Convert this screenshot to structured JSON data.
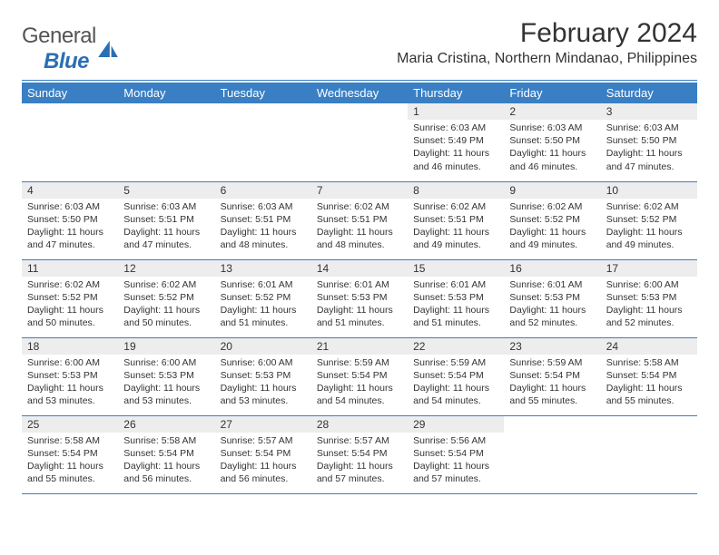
{
  "brand": {
    "name_general": "General",
    "name_blue": "Blue"
  },
  "title": "February 2024",
  "location": "Maria Cristina, Northern Mindanao, Philippines",
  "colors": {
    "header_bg": "#3a7fc4",
    "header_text": "#ffffff",
    "daynum_bg": "#ededed",
    "rule": "#3a7fc4",
    "text": "#333333",
    "brand_blue": "#2a6fb5"
  },
  "day_headers": [
    "Sunday",
    "Monday",
    "Tuesday",
    "Wednesday",
    "Thursday",
    "Friday",
    "Saturday"
  ],
  "weeks": [
    [
      null,
      null,
      null,
      null,
      {
        "n": "1",
        "sr": "6:03 AM",
        "ss": "5:49 PM",
        "dh": "11",
        "dm": "46"
      },
      {
        "n": "2",
        "sr": "6:03 AM",
        "ss": "5:50 PM",
        "dh": "11",
        "dm": "46"
      },
      {
        "n": "3",
        "sr": "6:03 AM",
        "ss": "5:50 PM",
        "dh": "11",
        "dm": "47"
      }
    ],
    [
      {
        "n": "4",
        "sr": "6:03 AM",
        "ss": "5:50 PM",
        "dh": "11",
        "dm": "47"
      },
      {
        "n": "5",
        "sr": "6:03 AM",
        "ss": "5:51 PM",
        "dh": "11",
        "dm": "47"
      },
      {
        "n": "6",
        "sr": "6:03 AM",
        "ss": "5:51 PM",
        "dh": "11",
        "dm": "48"
      },
      {
        "n": "7",
        "sr": "6:02 AM",
        "ss": "5:51 PM",
        "dh": "11",
        "dm": "48"
      },
      {
        "n": "8",
        "sr": "6:02 AM",
        "ss": "5:51 PM",
        "dh": "11",
        "dm": "49"
      },
      {
        "n": "9",
        "sr": "6:02 AM",
        "ss": "5:52 PM",
        "dh": "11",
        "dm": "49"
      },
      {
        "n": "10",
        "sr": "6:02 AM",
        "ss": "5:52 PM",
        "dh": "11",
        "dm": "49"
      }
    ],
    [
      {
        "n": "11",
        "sr": "6:02 AM",
        "ss": "5:52 PM",
        "dh": "11",
        "dm": "50"
      },
      {
        "n": "12",
        "sr": "6:02 AM",
        "ss": "5:52 PM",
        "dh": "11",
        "dm": "50"
      },
      {
        "n": "13",
        "sr": "6:01 AM",
        "ss": "5:52 PM",
        "dh": "11",
        "dm": "51"
      },
      {
        "n": "14",
        "sr": "6:01 AM",
        "ss": "5:53 PM",
        "dh": "11",
        "dm": "51"
      },
      {
        "n": "15",
        "sr": "6:01 AM",
        "ss": "5:53 PM",
        "dh": "11",
        "dm": "51"
      },
      {
        "n": "16",
        "sr": "6:01 AM",
        "ss": "5:53 PM",
        "dh": "11",
        "dm": "52"
      },
      {
        "n": "17",
        "sr": "6:00 AM",
        "ss": "5:53 PM",
        "dh": "11",
        "dm": "52"
      }
    ],
    [
      {
        "n": "18",
        "sr": "6:00 AM",
        "ss": "5:53 PM",
        "dh": "11",
        "dm": "53"
      },
      {
        "n": "19",
        "sr": "6:00 AM",
        "ss": "5:53 PM",
        "dh": "11",
        "dm": "53"
      },
      {
        "n": "20",
        "sr": "6:00 AM",
        "ss": "5:53 PM",
        "dh": "11",
        "dm": "53"
      },
      {
        "n": "21",
        "sr": "5:59 AM",
        "ss": "5:54 PM",
        "dh": "11",
        "dm": "54"
      },
      {
        "n": "22",
        "sr": "5:59 AM",
        "ss": "5:54 PM",
        "dh": "11",
        "dm": "54"
      },
      {
        "n": "23",
        "sr": "5:59 AM",
        "ss": "5:54 PM",
        "dh": "11",
        "dm": "55"
      },
      {
        "n": "24",
        "sr": "5:58 AM",
        "ss": "5:54 PM",
        "dh": "11",
        "dm": "55"
      }
    ],
    [
      {
        "n": "25",
        "sr": "5:58 AM",
        "ss": "5:54 PM",
        "dh": "11",
        "dm": "55"
      },
      {
        "n": "26",
        "sr": "5:58 AM",
        "ss": "5:54 PM",
        "dh": "11",
        "dm": "56"
      },
      {
        "n": "27",
        "sr": "5:57 AM",
        "ss": "5:54 PM",
        "dh": "11",
        "dm": "56"
      },
      {
        "n": "28",
        "sr": "5:57 AM",
        "ss": "5:54 PM",
        "dh": "11",
        "dm": "57"
      },
      {
        "n": "29",
        "sr": "5:56 AM",
        "ss": "5:54 PM",
        "dh": "11",
        "dm": "57"
      },
      null,
      null
    ]
  ],
  "labels": {
    "sunrise": "Sunrise:",
    "sunset": "Sunset:",
    "daylight": "Daylight:",
    "hours_word": "hours",
    "and_word": "and",
    "minutes_word": "minutes."
  }
}
